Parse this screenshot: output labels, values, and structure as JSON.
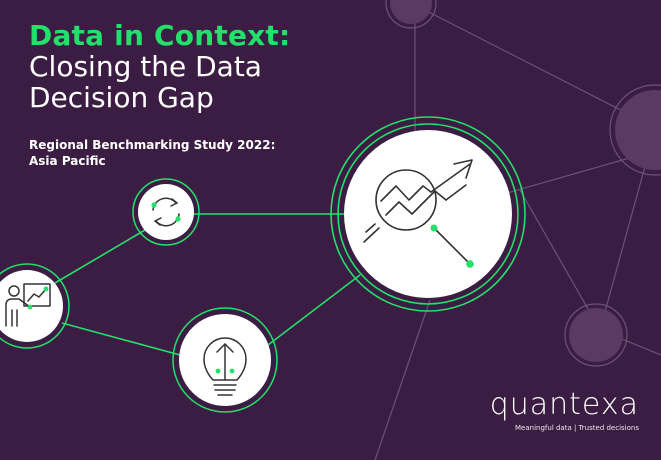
{
  "cover": {
    "title_accent": "Data in Context:",
    "title_line2": "Closing the Data",
    "title_line3": "Decision Gap",
    "subtitle_line1": "Regional Benchmarking Study 2022:",
    "subtitle_line2": "Asia Pacific"
  },
  "brand": {
    "name": "quantexa",
    "tagline": "Meaningful data | Trusted decisions"
  },
  "colors": {
    "background": "#3b1d43",
    "accent": "#22e06a",
    "node_fill": "#ffffff",
    "faint_node": "#5a3a63",
    "faint_line": "#6e5276"
  },
  "icons": [
    "refresh-cycle-icon",
    "presenter-chart-icon",
    "lightbulb-idea-icon",
    "trend-magnifier-icon"
  ]
}
